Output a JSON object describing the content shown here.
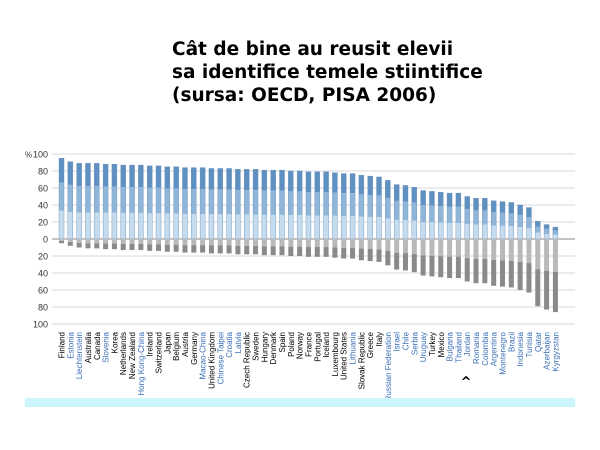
{
  "slide": {
    "title_lines": [
      "Cât de bine au reusit elevii",
      "sa identifice temele stiintifice",
      "(sursa: OECD, PISA 2006)"
    ]
  },
  "colors": {
    "oecd_label": "#000000",
    "partner_label": "#3a6fb8",
    "bar_light": "#c4dcee",
    "bar_mid": "#8fb6d8",
    "bar_dark": "#5e90c2",
    "bar_grey_light": "#b9b9b9",
    "bar_grey_dark": "#8a8a8a",
    "footer_band": "#ccf6fc"
  },
  "chart_data": {
    "type": "bar",
    "y_unit_label": "%",
    "yticks_top": [
      100,
      80,
      60,
      40,
      20,
      0
    ],
    "yticks_bottom": [
      20,
      40,
      60,
      80,
      100
    ],
    "ylim": [
      -100,
      100
    ],
    "marker_symbol": "^",
    "marker_category": "Romania",
    "categories": [
      {
        "name": "Finland",
        "partner": false,
        "top": 95,
        "bottom": 5
      },
      {
        "name": "Estonia",
        "partner": true,
        "top": 91,
        "bottom": 8
      },
      {
        "name": "Liechtenstein",
        "partner": true,
        "top": 89,
        "bottom": 10
      },
      {
        "name": "Australia",
        "partner": false,
        "top": 89,
        "bottom": 11
      },
      {
        "name": "Canada",
        "partner": false,
        "top": 89,
        "bottom": 11
      },
      {
        "name": "Slovenia",
        "partner": true,
        "top": 88,
        "bottom": 12
      },
      {
        "name": "Korea",
        "partner": false,
        "top": 88,
        "bottom": 12
      },
      {
        "name": "Netherlands",
        "partner": false,
        "top": 87,
        "bottom": 13
      },
      {
        "name": "New Zealand",
        "partner": false,
        "top": 87,
        "bottom": 13
      },
      {
        "name": "Hong Kong-China",
        "partner": true,
        "top": 87,
        "bottom": 13
      },
      {
        "name": "Ireland",
        "partner": false,
        "top": 86,
        "bottom": 14
      },
      {
        "name": "Switzerland",
        "partner": false,
        "top": 86,
        "bottom": 14
      },
      {
        "name": "Japan",
        "partner": false,
        "top": 85,
        "bottom": 15
      },
      {
        "name": "Belgium",
        "partner": false,
        "top": 85,
        "bottom": 15
      },
      {
        "name": "Austria",
        "partner": false,
        "top": 84,
        "bottom": 16
      },
      {
        "name": "Germany",
        "partner": false,
        "top": 84,
        "bottom": 16
      },
      {
        "name": "Macao-China",
        "partner": true,
        "top": 84,
        "bottom": 16
      },
      {
        "name": "United Kingdom",
        "partner": false,
        "top": 83,
        "bottom": 17
      },
      {
        "name": "Chinese Taipei",
        "partner": true,
        "top": 83,
        "bottom": 17
      },
      {
        "name": "Croatia",
        "partner": true,
        "top": 83,
        "bottom": 17
      },
      {
        "name": "Latvia",
        "partner": true,
        "top": 82,
        "bottom": 18
      },
      {
        "name": "Czech Republic",
        "partner": false,
        "top": 82,
        "bottom": 18
      },
      {
        "name": "Sweden",
        "partner": false,
        "top": 82,
        "bottom": 18
      },
      {
        "name": "Hungary",
        "partner": false,
        "top": 81,
        "bottom": 19
      },
      {
        "name": "Denmark",
        "partner": false,
        "top": 81,
        "bottom": 19
      },
      {
        "name": "Spain",
        "partner": false,
        "top": 81,
        "bottom": 19
      },
      {
        "name": "Poland",
        "partner": false,
        "top": 80,
        "bottom": 20
      },
      {
        "name": "Norway",
        "partner": false,
        "top": 80,
        "bottom": 20
      },
      {
        "name": "France",
        "partner": false,
        "top": 79,
        "bottom": 21
      },
      {
        "name": "Portugal",
        "partner": false,
        "top": 79,
        "bottom": 21
      },
      {
        "name": "Iceland",
        "partner": false,
        "top": 79,
        "bottom": 21
      },
      {
        "name": "Luxembourg",
        "partner": false,
        "top": 78,
        "bottom": 22
      },
      {
        "name": "United States",
        "partner": false,
        "top": 77,
        "bottom": 23
      },
      {
        "name": "Lithuania",
        "partner": true,
        "top": 77,
        "bottom": 23
      },
      {
        "name": "Slovak Republic",
        "partner": false,
        "top": 75,
        "bottom": 25
      },
      {
        "name": "Greece",
        "partner": false,
        "top": 74,
        "bottom": 26
      },
      {
        "name": "Italy",
        "partner": false,
        "top": 73,
        "bottom": 27
      },
      {
        "name": "Russian Federation",
        "partner": true,
        "top": 69,
        "bottom": 31
      },
      {
        "name": "Israel",
        "partner": true,
        "top": 64,
        "bottom": 36
      },
      {
        "name": "Chile",
        "partner": true,
        "top": 63,
        "bottom": 37
      },
      {
        "name": "Serbia",
        "partner": true,
        "top": 61,
        "bottom": 39
      },
      {
        "name": "Uruguay",
        "partner": true,
        "top": 57,
        "bottom": 43
      },
      {
        "name": "Turkey",
        "partner": false,
        "top": 56,
        "bottom": 44
      },
      {
        "name": "Mexico",
        "partner": false,
        "top": 55,
        "bottom": 45
      },
      {
        "name": "Bulgaria",
        "partner": true,
        "top": 54,
        "bottom": 46
      },
      {
        "name": "Thailand",
        "partner": true,
        "top": 54,
        "bottom": 46
      },
      {
        "name": "Jordan",
        "partner": true,
        "top": 50,
        "bottom": 50
      },
      {
        "name": "Romania",
        "partner": true,
        "top": 48,
        "bottom": 52
      },
      {
        "name": "Colombia",
        "partner": true,
        "top": 48,
        "bottom": 52
      },
      {
        "name": "Argentina",
        "partner": true,
        "top": 45,
        "bottom": 55
      },
      {
        "name": "Montenegro",
        "partner": true,
        "top": 44,
        "bottom": 56
      },
      {
        "name": "Brazil",
        "partner": true,
        "top": 43,
        "bottom": 57
      },
      {
        "name": "Indonesia",
        "partner": true,
        "top": 40,
        "bottom": 60
      },
      {
        "name": "Tunisia",
        "partner": true,
        "top": 37,
        "bottom": 63
      },
      {
        "name": "Qatar",
        "partner": true,
        "top": 21,
        "bottom": 79
      },
      {
        "name": "Azerbaijan",
        "partner": true,
        "top": 17,
        "bottom": 83
      },
      {
        "name": "Kyrgyzstan",
        "partner": true,
        "top": 14,
        "bottom": 86
      }
    ]
  }
}
